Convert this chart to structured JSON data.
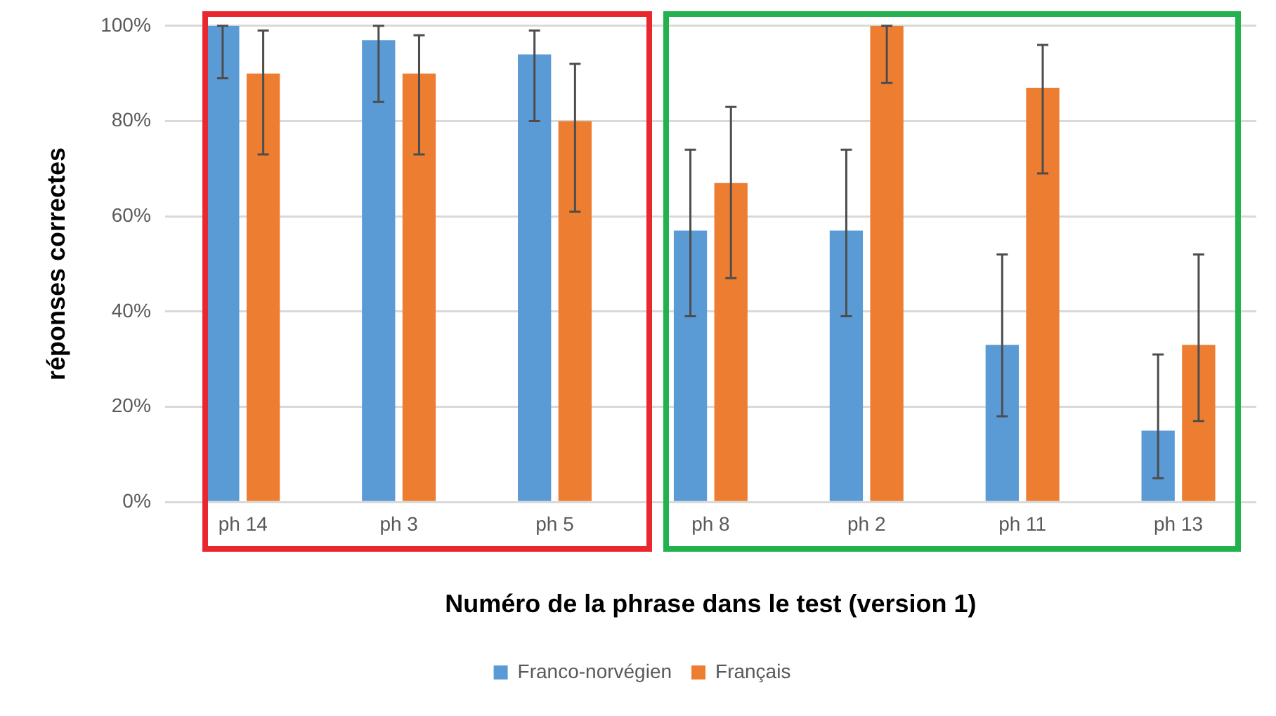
{
  "chart_data": {
    "type": "bar",
    "xlabel": "Numéro de la phrase dans le test (version 1)",
    "ylabel": "réponses correctes",
    "categories": [
      "ph 14",
      "ph 3",
      "ph 5",
      "ph 8",
      "ph 2",
      "ph 11",
      "ph 13"
    ],
    "series": [
      {
        "name": "Franco-norvégien",
        "color": "#5b9bd5",
        "values": [
          100,
          97,
          94,
          57,
          57,
          33,
          15
        ],
        "errors": [
          [
            89,
            100
          ],
          [
            84,
            100
          ],
          [
            80,
            99
          ],
          [
            39,
            74
          ],
          [
            39,
            74
          ],
          [
            18,
            52
          ],
          [
            5,
            31
          ]
        ]
      },
      {
        "name": "Français",
        "color": "#ed7d31",
        "values": [
          90,
          90,
          80,
          67,
          100,
          87,
          33
        ],
        "errors": [
          [
            73,
            99
          ],
          [
            73,
            98
          ],
          [
            61,
            92
          ],
          [
            47,
            83
          ],
          [
            88,
            100
          ],
          [
            69,
            96
          ],
          [
            17,
            52
          ]
        ]
      }
    ],
    "ylim": [
      0,
      100
    ],
    "yticks": [
      {
        "value": 0,
        "label": "0%"
      },
      {
        "value": 20,
        "label": "20%"
      },
      {
        "value": 40,
        "label": "40%"
      },
      {
        "value": 60,
        "label": "60%"
      },
      {
        "value": 80,
        "label": "80%"
      },
      {
        "value": 100,
        "label": "100%"
      }
    ],
    "grid": "y",
    "legend": "bottom"
  }
}
